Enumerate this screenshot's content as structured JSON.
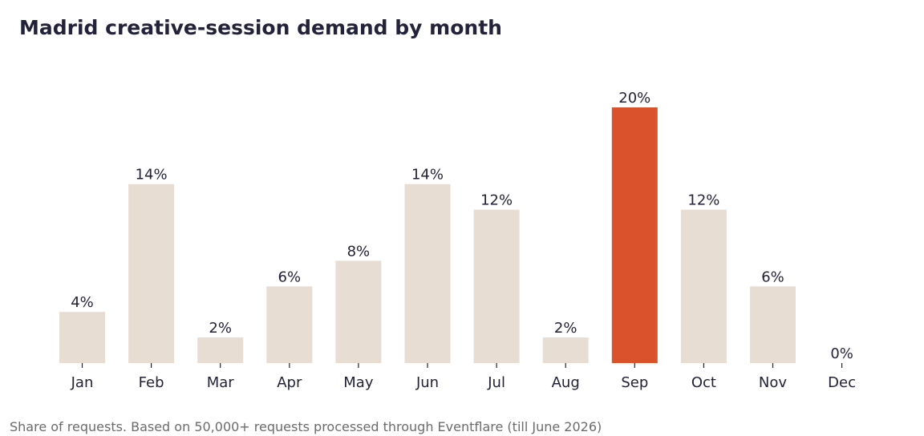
{
  "title": "Madrid creative-session demand by month",
  "footnote": "Share of requests. Based on 50,000+ requests processed through Eventflare (till June 2026)",
  "colors": {
    "default_bar": "#e8ddd3",
    "highlight_bar": "#d9522b",
    "text": "#22223a",
    "tick": "#22223a"
  },
  "chart_data": {
    "type": "bar",
    "categories": [
      "Jan",
      "Feb",
      "Mar",
      "Apr",
      "May",
      "Jun",
      "Jul",
      "Aug",
      "Sep",
      "Oct",
      "Nov",
      "Dec"
    ],
    "values": [
      4,
      14,
      2,
      6,
      8,
      14,
      12,
      2,
      20,
      12,
      6,
      0
    ],
    "data_labels": [
      "4%",
      "14%",
      "2%",
      "6%",
      "8%",
      "14%",
      "12%",
      "2%",
      "20%",
      "12%",
      "6%",
      "0%"
    ],
    "highlight": "Sep",
    "title": "Madrid creative-session demand by month",
    "xlabel": "",
    "ylabel": "",
    "ylim": [
      0,
      20
    ],
    "grid": false
  }
}
